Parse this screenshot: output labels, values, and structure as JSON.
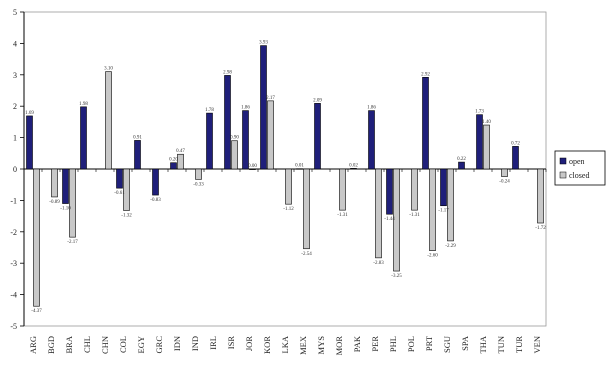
{
  "chart_data": {
    "type": "bar",
    "categories": [
      "ARG",
      "BGD",
      "BRA",
      "CHL",
      "CHN",
      "COL",
      "EGY",
      "GRC",
      "IDN",
      "IND",
      "IRL",
      "ISR",
      "JOR",
      "KOR",
      "LKA",
      "MEX",
      "MYS",
      "MOR",
      "PAK",
      "PER",
      "PHL",
      "POL",
      "PRT",
      "SGU",
      "SPA",
      "THA",
      "TUN",
      "TUR",
      "VEN"
    ],
    "series": [
      {
        "name": "open",
        "color": "#1f1f7a",
        "values": [
          1.69,
          null,
          -1.1,
          1.98,
          null,
          -0.61,
          0.91,
          -0.83,
          0.2,
          null,
          1.78,
          2.98,
          1.86,
          3.93,
          null,
          0.01,
          2.09,
          null,
          0.02,
          1.86,
          -1.44,
          null,
          2.92,
          -1.17,
          0.22,
          1.73,
          null,
          0.72,
          null
        ],
        "labels": [
          "1.69",
          "",
          "-1.10",
          "1.98",
          "",
          "-0.61",
          "0.91",
          "-0.83",
          "0.20",
          "",
          "1.78",
          "2.98",
          "1.86",
          "3.93",
          "",
          "0.01",
          "2.09",
          "",
          "0.02",
          "1.86",
          "-1.44",
          "",
          "2.92",
          "-1.17",
          "0.22",
          "1.73",
          "",
          "0.72",
          ""
        ]
      },
      {
        "name": "closed",
        "color": "#c8c8c8",
        "values": [
          -4.37,
          -0.89,
          -2.17,
          null,
          3.1,
          -1.32,
          null,
          null,
          0.47,
          -0.33,
          null,
          0.9,
          0.0,
          2.17,
          -1.12,
          -2.54,
          null,
          -1.31,
          null,
          -2.83,
          -3.25,
          -1.31,
          -2.6,
          -2.29,
          null,
          1.4,
          -0.24,
          null,
          -1.72
        ],
        "labels": [
          "-4.37",
          "-0.89",
          "-2.17",
          "",
          "3.10",
          "-1.32",
          "",
          "",
          "0.47",
          "-0.33",
          "",
          "0.90",
          "0.00",
          "2.17",
          "-1.12",
          "-2.54",
          "",
          "-1.31",
          "",
          "-2.83",
          "-3.25",
          "-1.31",
          "-2.60",
          "-2.29",
          "",
          "1.40",
          "-0.24",
          "",
          "-1.72"
        ]
      }
    ],
    "ylim": [
      -5,
      5
    ],
    "yticks": [
      -5,
      -4,
      -3,
      -2,
      -1,
      0,
      1,
      2,
      3,
      4,
      5
    ],
    "title": "",
    "xlabel": "",
    "ylabel": "",
    "legend": {
      "position": "right",
      "entries": [
        "open",
        "closed"
      ]
    },
    "grid": false
  }
}
